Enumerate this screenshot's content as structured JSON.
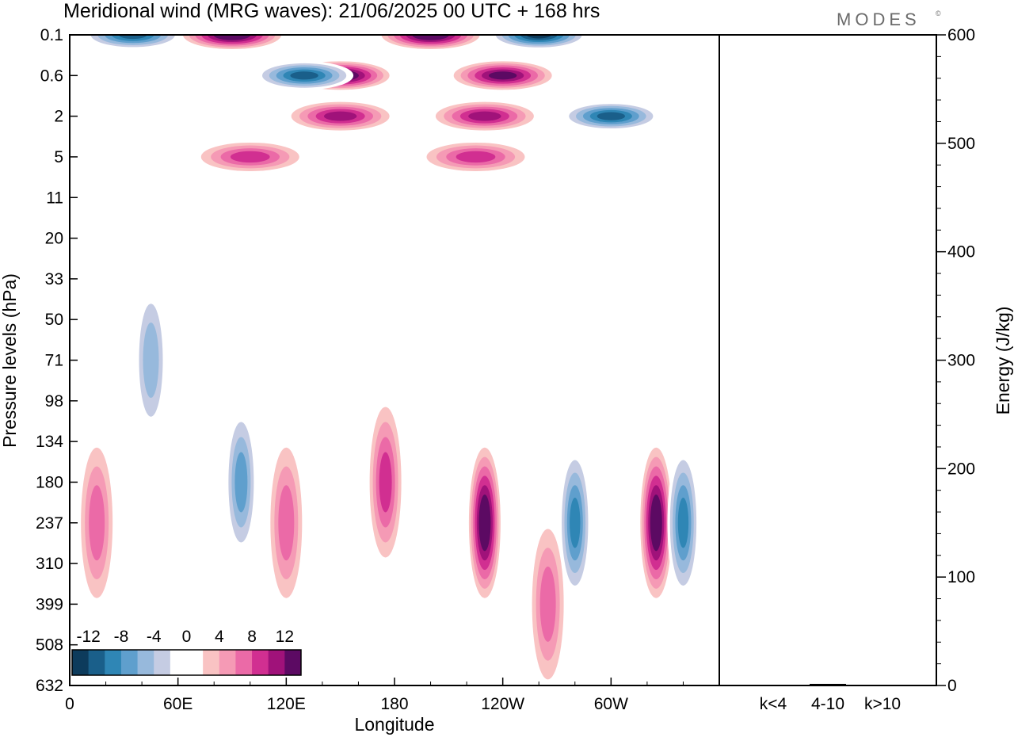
{
  "title": "Meridional wind (MRG waves):  21/06/2025  00 UTC  + 168 hrs",
  "brand": "MODES",
  "brand_mark": "©",
  "chart_data": [
    {
      "type": "heatmap",
      "title": "Meridional wind (MRG waves):  21/06/2025  00 UTC  + 168 hrs",
      "xlabel": "Longitude",
      "ylabel": "Pressure levels (hPa)",
      "x_ticks": [
        "0",
        "60E",
        "120E",
        "180",
        "120W",
        "60W"
      ],
      "x_tick_values": [
        0,
        60,
        120,
        180,
        240,
        300
      ],
      "xlim": [
        0,
        360
      ],
      "y_ticks": [
        "0.1",
        "0.6",
        "2",
        "5",
        "11",
        "20",
        "33",
        "50",
        "71",
        "98",
        "134",
        "180",
        "237",
        "310",
        "399",
        "508",
        "632"
      ],
      "y_scale": "model levels (top 0.1 hPa to bottom 632 hPa)",
      "colorbar": {
        "labels": [
          "-12",
          "-8",
          "-4",
          "0",
          "4",
          "8",
          "12"
        ],
        "levels": [
          -14,
          -12,
          -10,
          -8,
          -6,
          -4,
          -2,
          2,
          4,
          6,
          8,
          10,
          12,
          14
        ],
        "colors": [
          "#0d3b5c",
          "#1a5f8a",
          "#2f86b5",
          "#5f9fcd",
          "#97b9dc",
          "#c5cce3",
          "#ffffff",
          "#ffffff",
          "#f9c3c3",
          "#f59ab5",
          "#eb6aa7",
          "#d12f91",
          "#a0127a",
          "#5c0a63"
        ],
        "placement": "bottom-left, inside plot"
      },
      "features": [
        {
          "lon": 90,
          "p": "0.1",
          "value": 14
        },
        {
          "lon": 35,
          "p": "0.1",
          "value": -12
        },
        {
          "lon": 200,
          "p": "0.1",
          "value": 14
        },
        {
          "lon": 260,
          "p": "0.1",
          "value": -14
        },
        {
          "lon": 150,
          "p": "0.6",
          "value": 14
        },
        {
          "lon": 130,
          "p": "0.6",
          "value": -12
        },
        {
          "lon": 240,
          "p": "0.6",
          "value": 12
        },
        {
          "lon": 230,
          "p": "2",
          "value": 10
        },
        {
          "lon": 300,
          "p": "2",
          "value": -12
        },
        {
          "lon": 150,
          "p": "2",
          "value": 10
        },
        {
          "lon": 225,
          "p": "5",
          "value": 8
        },
        {
          "lon": 100,
          "p": "5",
          "value": 8
        },
        {
          "lon": 230,
          "p": "237",
          "value": 14
        },
        {
          "lon": 325,
          "p": "237",
          "value": 14
        },
        {
          "lon": 340,
          "p": "237",
          "value": -10
        },
        {
          "lon": 280,
          "p": "237",
          "value": -10
        },
        {
          "lon": 95,
          "p": "180",
          "value": -8
        },
        {
          "lon": 175,
          "p": "180",
          "value": 8
        },
        {
          "lon": 120,
          "p": "237",
          "value": 6
        },
        {
          "lon": 15,
          "p": "237",
          "value": 6
        },
        {
          "lon": 45,
          "p": "71",
          "value": -6
        },
        {
          "lon": 265,
          "p": "399",
          "value": 6
        }
      ]
    },
    {
      "type": "bar",
      "categories": [
        "k<4",
        "4-10",
        "k>10"
      ],
      "values": [
        0.5,
        1.5,
        0.3
      ],
      "ylabel": "Energy (J/kg)",
      "ylim": [
        0,
        600
      ],
      "y_ticks": [
        "0",
        "100",
        "200",
        "300",
        "400",
        "500",
        "600"
      ]
    }
  ]
}
